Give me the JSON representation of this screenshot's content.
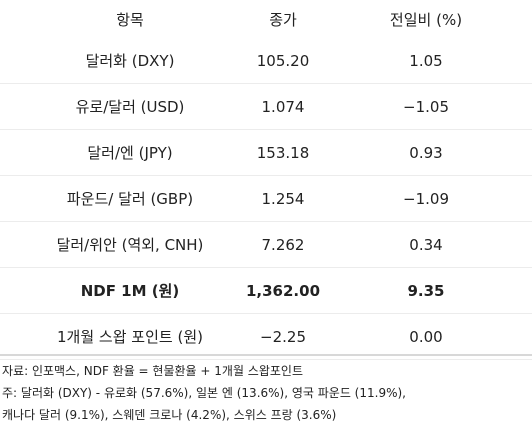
{
  "table": {
    "header": [
      "항목",
      "종가",
      "전일비 (%)"
    ],
    "rows": [
      [
        "달러화 (DXY)",
        "105.20",
        "1.05"
      ],
      [
        "유로/달러 (USD)",
        "1.074",
        "−1.05"
      ],
      [
        "달러/엔 (JPY)",
        "153.18",
        "0.93"
      ],
      [
        "파운드/ 달러 (GBP)",
        "1.254",
        "−1.09"
      ],
      [
        "달러/위안 (역외, CNH)",
        "7.262",
        "0.34"
      ],
      [
        "NDF 1M (원)",
        "1,362.00",
        "9.35"
      ],
      [
        "1개월 스왑 포인트 (원)",
        "−2.25",
        "0.00"
      ]
    ]
  },
  "notes": [
    "자료: 인포맥스, NDF 환율 = 현물환율 + 1개월 스왑포인트",
    "주: 달러화 (DXY) - 유로화 (57.6%), 일본 엔 (13.6%), 영국 파운드 (11.9%),",
    "캐나다 달러 (9.1%), 스웨덴 크로나 (4.2%), 스위스 프랑 (3.6%)"
  ]
}
